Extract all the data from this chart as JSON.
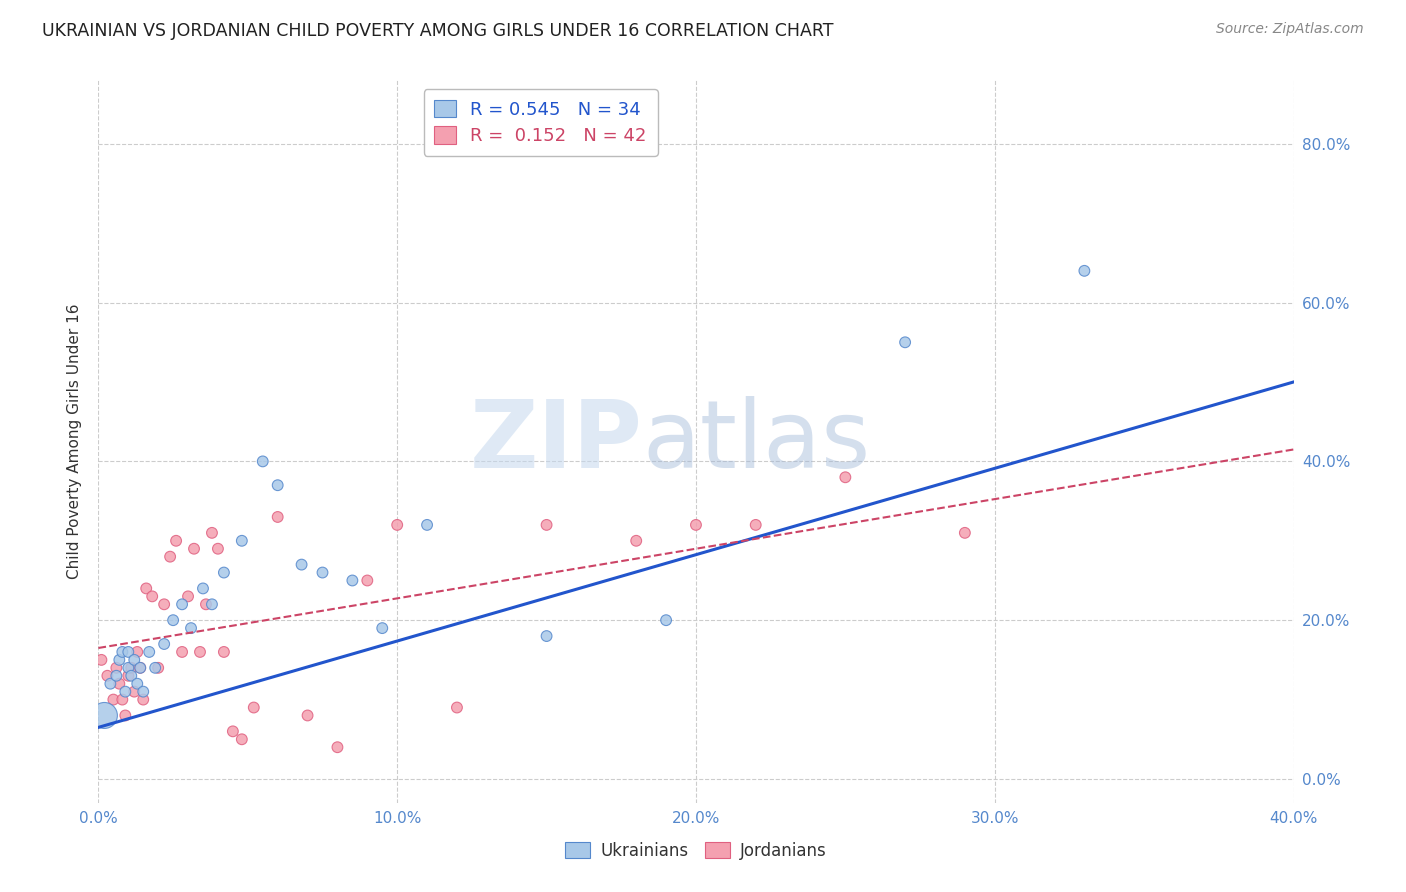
{
  "title": "UKRAINIAN VS JORDANIAN CHILD POVERTY AMONG GIRLS UNDER 16 CORRELATION CHART",
  "source": "Source: ZipAtlas.com",
  "ylabel": "Child Poverty Among Girls Under 16",
  "xlim": [
    0.0,
    0.4
  ],
  "ylim": [
    -0.03,
    0.88
  ],
  "yticks": [
    0.0,
    0.2,
    0.4,
    0.6,
    0.8
  ],
  "xticks": [
    0.0,
    0.1,
    0.2,
    0.3,
    0.4
  ],
  "watermark": "ZIPatlas",
  "r_ukrainian": "0.545",
  "n_ukrainian": "34",
  "r_jordanian": "0.152",
  "n_jordanian": "42",
  "ukrainian_fill": "#a8c8e8",
  "ukrainian_edge": "#5588cc",
  "jordanian_fill": "#f4a0b0",
  "jordanian_edge": "#e06080",
  "trendline_blue": "#2255cc",
  "trendline_pink": "#cc4466",
  "background": "#ffffff",
  "title_color": "#222222",
  "ylabel_color": "#333333",
  "tick_color": "#5588cc",
  "grid_color": "#cccccc",
  "source_color": "#888888",
  "ukrainians_x": [
    0.002,
    0.004,
    0.006,
    0.007,
    0.008,
    0.009,
    0.01,
    0.01,
    0.011,
    0.012,
    0.013,
    0.014,
    0.015,
    0.017,
    0.019,
    0.022,
    0.025,
    0.028,
    0.031,
    0.035,
    0.038,
    0.042,
    0.048,
    0.055,
    0.06,
    0.068,
    0.075,
    0.085,
    0.095,
    0.11,
    0.15,
    0.19,
    0.27,
    0.33
  ],
  "ukrainians_y": [
    0.08,
    0.12,
    0.13,
    0.15,
    0.16,
    0.11,
    0.14,
    0.16,
    0.13,
    0.15,
    0.12,
    0.14,
    0.11,
    0.16,
    0.14,
    0.17,
    0.2,
    0.22,
    0.19,
    0.24,
    0.22,
    0.26,
    0.3,
    0.4,
    0.37,
    0.27,
    0.26,
    0.25,
    0.19,
    0.32,
    0.18,
    0.2,
    0.55,
    0.64
  ],
  "ukrainians_size": [
    350,
    60,
    60,
    60,
    60,
    60,
    60,
    60,
    60,
    60,
    60,
    60,
    60,
    60,
    60,
    60,
    60,
    60,
    60,
    60,
    60,
    60,
    60,
    60,
    60,
    60,
    60,
    60,
    60,
    60,
    60,
    60,
    60,
    60
  ],
  "jordanians_x": [
    0.001,
    0.003,
    0.005,
    0.006,
    0.007,
    0.008,
    0.009,
    0.01,
    0.011,
    0.012,
    0.013,
    0.014,
    0.015,
    0.016,
    0.018,
    0.02,
    0.022,
    0.024,
    0.026,
    0.028,
    0.03,
    0.032,
    0.034,
    0.036,
    0.038,
    0.04,
    0.042,
    0.045,
    0.048,
    0.052,
    0.06,
    0.07,
    0.08,
    0.09,
    0.1,
    0.12,
    0.15,
    0.18,
    0.2,
    0.22,
    0.25,
    0.29
  ],
  "jordanians_y": [
    0.15,
    0.13,
    0.1,
    0.14,
    0.12,
    0.1,
    0.08,
    0.13,
    0.14,
    0.11,
    0.16,
    0.14,
    0.1,
    0.24,
    0.23,
    0.14,
    0.22,
    0.28,
    0.3,
    0.16,
    0.23,
    0.29,
    0.16,
    0.22,
    0.31,
    0.29,
    0.16,
    0.06,
    0.05,
    0.09,
    0.33,
    0.08,
    0.04,
    0.25,
    0.32,
    0.09,
    0.32,
    0.3,
    0.32,
    0.32,
    0.38,
    0.31
  ],
  "jordanians_size": [
    60,
    60,
    60,
    60,
    60,
    60,
    60,
    60,
    60,
    60,
    60,
    60,
    60,
    60,
    60,
    60,
    60,
    60,
    60,
    60,
    60,
    60,
    60,
    60,
    60,
    60,
    60,
    60,
    60,
    60,
    60,
    60,
    60,
    60,
    60,
    60,
    60,
    60,
    60,
    60,
    60,
    60
  ],
  "blue_trend_x": [
    0.0,
    0.4
  ],
  "blue_trend_y": [
    0.065,
    0.5
  ],
  "pink_trend_x": [
    0.0,
    0.4
  ],
  "pink_trend_y": [
    0.165,
    0.415
  ]
}
